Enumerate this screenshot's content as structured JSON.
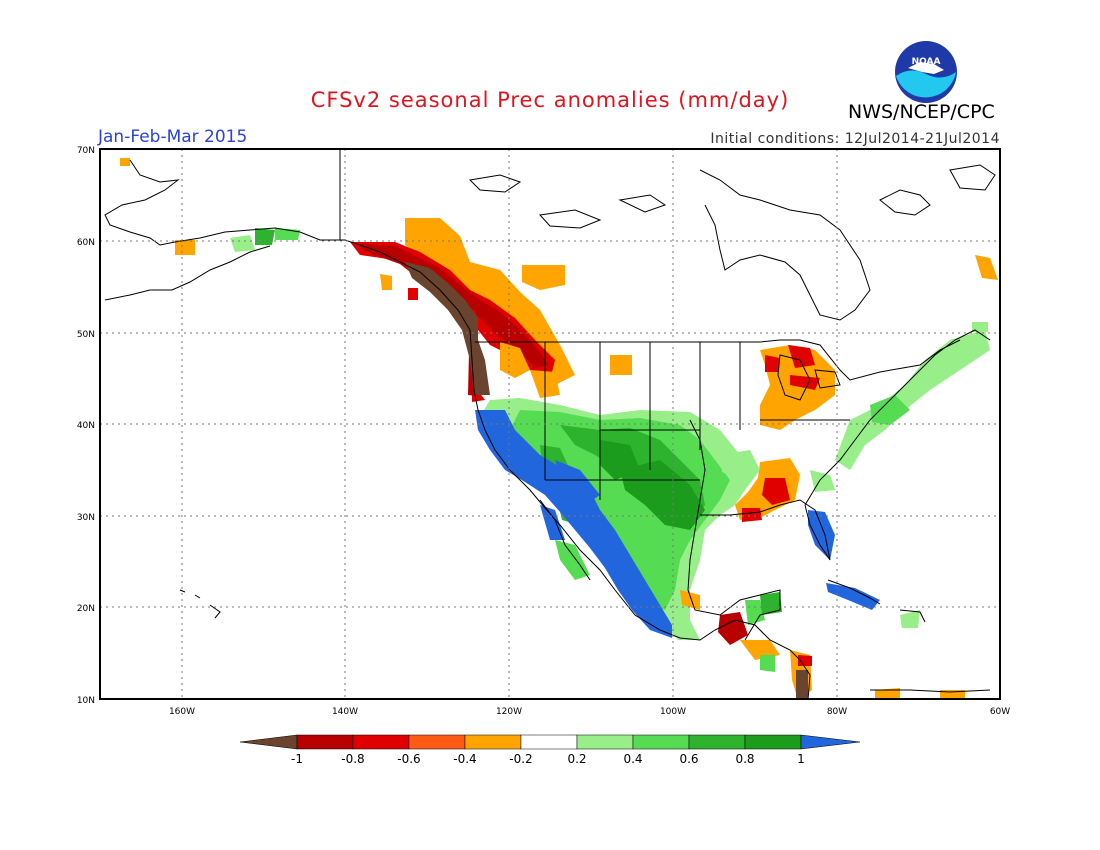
{
  "header": {
    "title": "CFSv2 seasonal Prec anomalies (mm/day)",
    "period": "Jan-Feb-Mar 2015",
    "initial_conditions": "Initial conditions: 12Jul2014-21Jul2014",
    "agency": "NWS/NCEP/CPC",
    "logo_text": "NOAA"
  },
  "axes": {
    "lat_labels": [
      "70N",
      "60N",
      "50N",
      "40N",
      "30N",
      "20N",
      "10N"
    ],
    "lon_labels": [
      "160W",
      "140W",
      "120W",
      "100W",
      "80W",
      "60W"
    ],
    "lat_range": [
      10,
      70
    ],
    "lon_range": [
      -170,
      -60
    ]
  },
  "colorbar": {
    "labels": [
      "-1",
      "-0.8",
      "-0.6",
      "-0.4",
      "-0.2",
      "0.2",
      "0.4",
      "0.6",
      "0.8",
      "1"
    ],
    "colors": [
      "#6b4430",
      "#b80000",
      "#e00000",
      "#ff5a14",
      "#ffa400",
      "#ffffff",
      "#98ee88",
      "#56dc52",
      "#2db32d",
      "#1c9c1c",
      "#2266dd"
    ]
  },
  "colors": {
    "brown": "#6b4430",
    "darkred": "#b80000",
    "red": "#e00000",
    "orange_red": "#ff5a14",
    "orange": "#ffa400",
    "light_green": "#98ee88",
    "green": "#56dc52",
    "mid_green": "#2db32d",
    "dark_green": "#1c9c1c",
    "blue": "#2266dd"
  }
}
